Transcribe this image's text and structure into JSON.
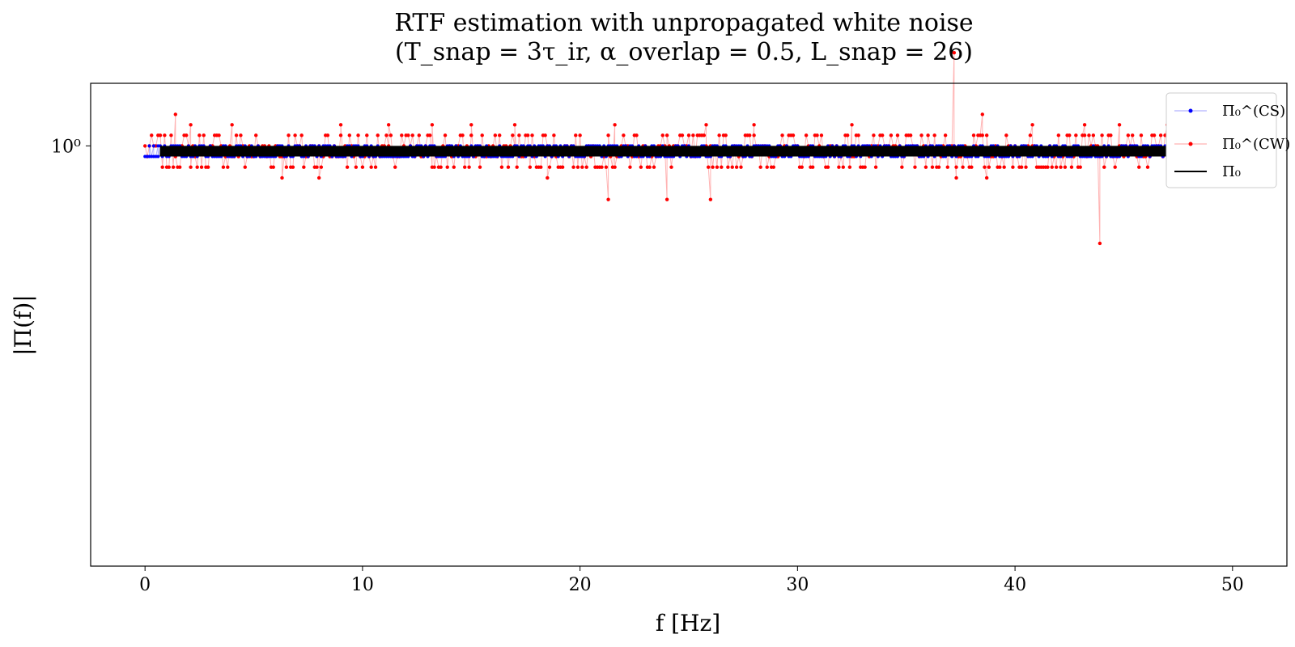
{
  "chart_data": {
    "type": "line",
    "title": "RTF estimation with unpropagated white noise",
    "subtitle": "(T_snap = 3τ_ir,   α_overlap = 0.5,   L_snap = 26)",
    "xlabel": "f [Hz]",
    "ylabel": "|Π(f)|",
    "xlim": [
      -2.5,
      52.5
    ],
    "ylim": [
      0.82,
      1.03
    ],
    "y_scale": "log",
    "grid": false,
    "legend_position": "top-right",
    "x_ticks": [
      0,
      10,
      20,
      30,
      40,
      50
    ],
    "x_tick_labels": [
      "0",
      "10",
      "20",
      "30",
      "40",
      "50"
    ],
    "y_ticks": [
      1.0
    ],
    "y_tick_labels": [
      "10⁰"
    ],
    "series": [
      {
        "name": "Π₀^(CS)",
        "color": "#0000ff",
        "marker": "dot",
        "line_alpha": 0.3,
        "x_range": [
          0,
          50
        ],
        "typical_values": [
          0.995,
          1.0
        ],
        "points": [
          {
            "x": 0.2,
            "y": 1.0
          },
          {
            "x": 0.4,
            "y": 0.995
          },
          {
            "x": 0.6,
            "y": 0.995
          },
          {
            "x": 5.0,
            "y": 0.996
          },
          {
            "x": 10.0,
            "y": 0.996
          },
          {
            "x": 20.0,
            "y": 0.996
          },
          {
            "x": 30.0,
            "y": 0.996
          },
          {
            "x": 40.0,
            "y": 0.996
          },
          {
            "x": 50.0,
            "y": 1.0
          }
        ]
      },
      {
        "name": "Π₀^(CW)",
        "color": "#ff0000",
        "marker": "dot",
        "line_alpha": 0.3,
        "x_range": [
          0,
          50
        ],
        "typical_values": [
          0.99,
          0.995,
          1.0,
          1.005
        ],
        "points": [
          {
            "x": 1.4,
            "y": 1.015
          },
          {
            "x": 2.1,
            "y": 1.01
          },
          {
            "x": 4.0,
            "y": 1.01
          },
          {
            "x": 6.3,
            "y": 0.985
          },
          {
            "x": 8.0,
            "y": 0.985
          },
          {
            "x": 9.0,
            "y": 1.01
          },
          {
            "x": 11.2,
            "y": 1.01
          },
          {
            "x": 13.2,
            "y": 1.01
          },
          {
            "x": 15.0,
            "y": 1.01
          },
          {
            "x": 17.0,
            "y": 1.01
          },
          {
            "x": 18.5,
            "y": 0.985
          },
          {
            "x": 21.3,
            "y": 0.975
          },
          {
            "x": 21.6,
            "y": 1.01
          },
          {
            "x": 24.0,
            "y": 0.975
          },
          {
            "x": 25.8,
            "y": 1.01
          },
          {
            "x": 26.0,
            "y": 0.975
          },
          {
            "x": 28.0,
            "y": 1.01
          },
          {
            "x": 32.5,
            "y": 1.01
          },
          {
            "x": 37.2,
            "y": 1.045
          },
          {
            "x": 37.3,
            "y": 0.985
          },
          {
            "x": 38.5,
            "y": 1.015
          },
          {
            "x": 38.7,
            "y": 0.985
          },
          {
            "x": 40.8,
            "y": 1.01
          },
          {
            "x": 43.2,
            "y": 1.01
          },
          {
            "x": 43.9,
            "y": 0.955
          },
          {
            "x": 44.8,
            "y": 1.01
          },
          {
            "x": 47.0,
            "y": 1.01
          },
          {
            "x": 48.3,
            "y": 1.01
          }
        ]
      },
      {
        "name": "Π₀",
        "color": "#000000",
        "marker": "none",
        "line_alpha": 1.0,
        "x_range": [
          0.7,
          50
        ],
        "typical_values": [
          0.995,
          1.0
        ]
      }
    ]
  }
}
